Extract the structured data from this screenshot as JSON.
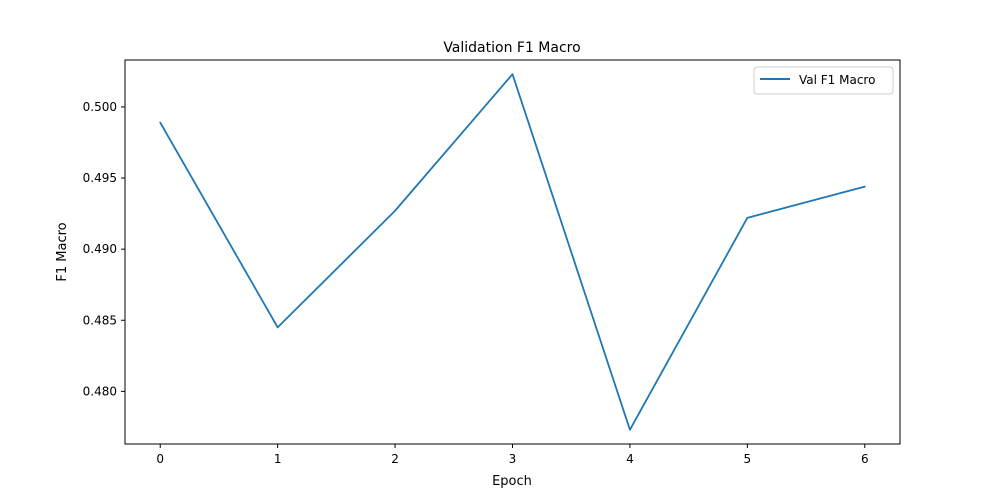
{
  "chart_data": {
    "type": "line",
    "title": "Validation F1 Macro",
    "xlabel": "Epoch",
    "ylabel": "F1 Macro",
    "x": [
      0,
      1,
      2,
      3,
      4,
      5,
      6
    ],
    "xticks": [
      "0",
      "1",
      "2",
      "3",
      "4",
      "5",
      "6"
    ],
    "yticks": [
      "0.480",
      "0.485",
      "0.490",
      "0.495",
      "0.500"
    ],
    "ytick_values": [
      0.48,
      0.485,
      0.49,
      0.495,
      0.5
    ],
    "xlim": [
      -0.3,
      6.3
    ],
    "ylim": [
      0.4763,
      0.5033
    ],
    "grid": false,
    "legend_position": "upper-right",
    "series": [
      {
        "name": "Val F1 Macro",
        "color": "#1f77b4",
        "values": [
          0.4989,
          0.4845,
          0.4927,
          0.5023,
          0.4773,
          0.4922,
          0.4944
        ]
      }
    ]
  }
}
